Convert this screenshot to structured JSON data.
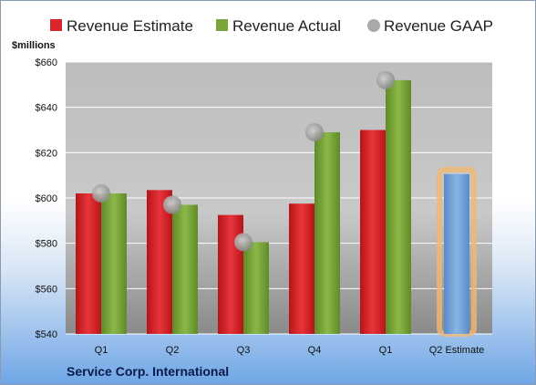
{
  "chart_data": {
    "type": "bar",
    "ylabel": "$millions",
    "ylim": [
      540,
      660
    ],
    "yticks": [
      "$540",
      "$560",
      "$580",
      "$600",
      "$620",
      "$640",
      "$660"
    ],
    "ytick_values": [
      540,
      560,
      580,
      600,
      620,
      640,
      660
    ],
    "categories": [
      "Q1",
      "Q2",
      "Q3",
      "Q4",
      "Q1",
      "Q2 Estimate"
    ],
    "series": [
      {
        "name": "Revenue Estimate",
        "color": "#d9262b",
        "values": [
          602,
          603.5,
          592.5,
          597.5,
          630,
          null
        ]
      },
      {
        "name": "Revenue Actual",
        "color": "#7aa53b",
        "values": [
          602,
          597,
          580.5,
          629,
          652,
          null
        ]
      },
      {
        "name": "Revenue GAAP",
        "color": "#a9a9a9",
        "values": [
          602,
          597,
          580.5,
          629,
          652,
          null
        ]
      }
    ],
    "forecast": {
      "category_index": 5,
      "value": 610.5,
      "color": "#6f9fd8",
      "glow": "#f3b772"
    },
    "legend_position": "top",
    "grid": true,
    "company": "Service Corp. International"
  }
}
